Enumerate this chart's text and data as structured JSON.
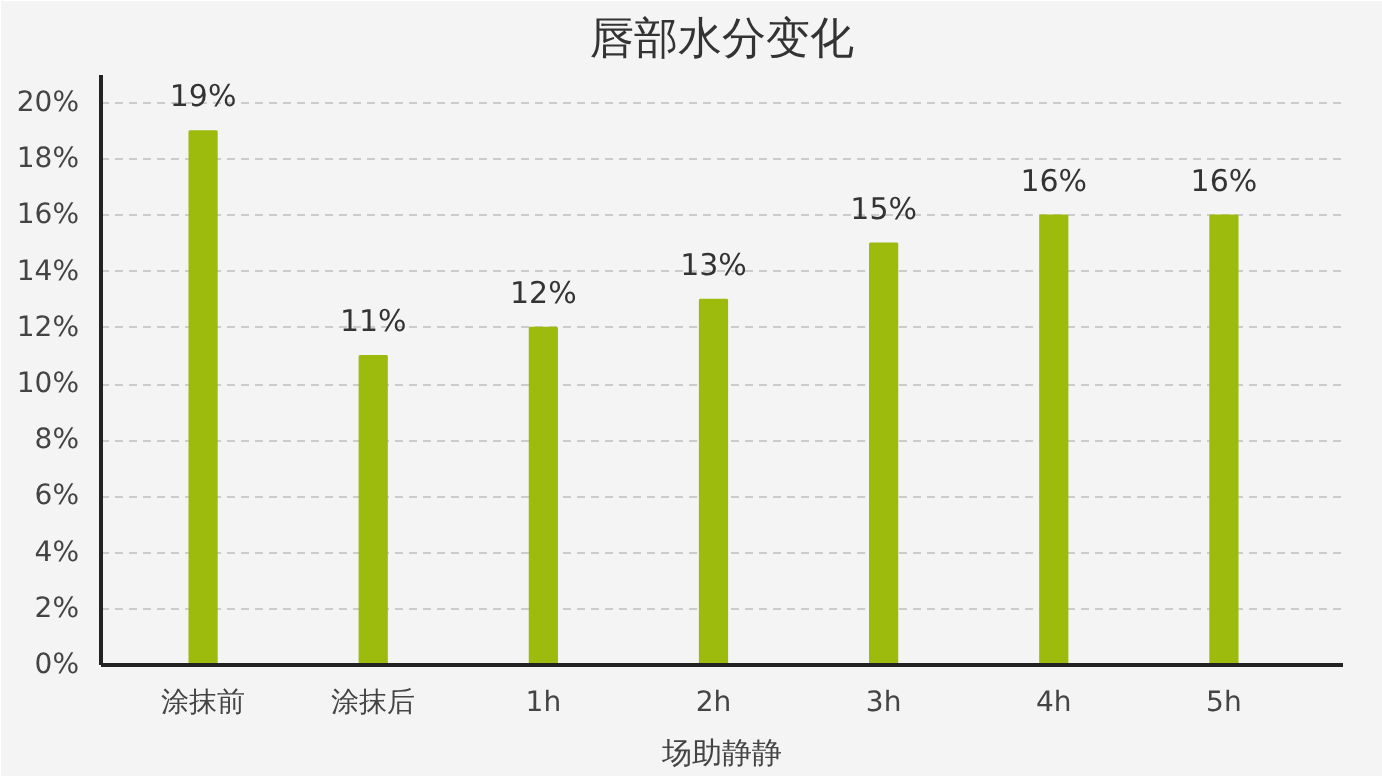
{
  "chart_data": {
    "type": "bar",
    "title": "唇部水分变化",
    "xlabel": "场助静静",
    "categories": [
      "涂抹前",
      "涂抹后",
      "1h",
      "2h",
      "3h",
      "4h",
      "5h"
    ],
    "values": [
      19,
      11,
      12,
      13,
      15,
      16,
      16
    ],
    "color": "#9dbb0c",
    "data_labels": true,
    "value_labels": [
      "19%",
      "11%",
      "12%",
      "13%",
      "15%",
      "16%",
      "16%"
    ],
    "ylim": [
      0,
      21
    ],
    "yticks": [
      {
        "value": 0,
        "label": "0%"
      },
      {
        "value": 2,
        "label": "2%"
      },
      {
        "value": 4,
        "label": "4%"
      },
      {
        "value": 6,
        "label": "6%"
      },
      {
        "value": 8,
        "label": "8%"
      },
      {
        "value": 10,
        "label": "10%"
      },
      {
        "value": 12,
        "label": "12%"
      },
      {
        "value": 14,
        "label": "14%"
      },
      {
        "value": 16,
        "label": "16%"
      },
      {
        "value": 18,
        "label": "18%"
      },
      {
        "value": 20,
        "label": "20%"
      }
    ],
    "grid": "y"
  }
}
